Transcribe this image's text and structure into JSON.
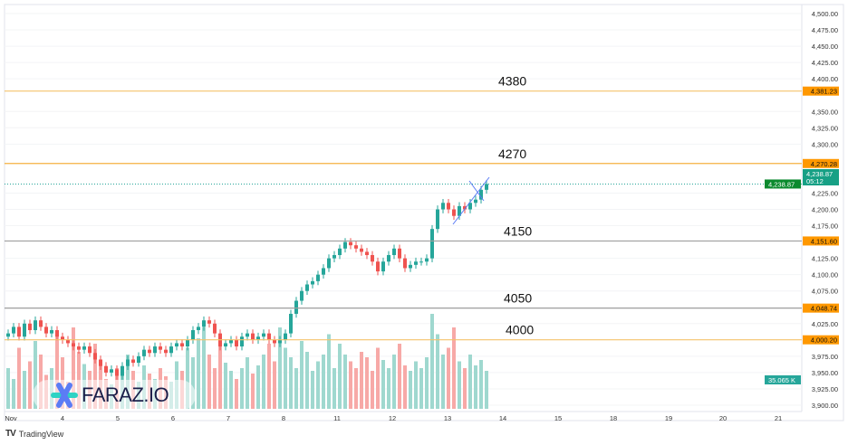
{
  "chart_data": {
    "type": "candlestick",
    "y_axis": {
      "min": 3900,
      "max": 4500,
      "ticks": [
        "4,500.00",
        "4,475.00",
        "4,450.00",
        "4,425.00",
        "4,400.00",
        "4,350.00",
        "4,325.00",
        "4,300.00",
        "4,225.00",
        "4,200.00",
        "4,175.00",
        "4,125.00",
        "4,100.00",
        "4,075.00",
        "4,025.00",
        "3,975.00",
        "3,950.00",
        "3,925.00",
        "3,900.00"
      ],
      "tick_values": [
        4500,
        4475,
        4450,
        4425,
        4400,
        4350,
        4325,
        4300,
        4225,
        4200,
        4175,
        4125,
        4100,
        4075,
        4025,
        3975,
        3950,
        3925,
        3900
      ]
    },
    "x_axis": {
      "labels": [
        "Nov",
        "4",
        "5",
        "6",
        "7",
        "8",
        "11",
        "12",
        "13",
        "14",
        "15",
        "18",
        "19",
        "20",
        "21"
      ]
    },
    "closes": [
      4010,
      4020,
      4005,
      4025,
      4015,
      4030,
      4020,
      4010,
      4015,
      4005,
      4000,
      3995,
      3990,
      3985,
      3990,
      3980,
      3970,
      3960,
      3950,
      3955,
      3945,
      3960,
      3970,
      3965,
      3975,
      3985,
      3980,
      3990,
      3985,
      3980,
      3990,
      3995,
      3990,
      4000,
      4015,
      4020,
      4030,
      4025,
      4010,
      3990,
      3995,
      4000,
      3990,
      4005,
      4010,
      4000,
      4005,
      4010,
      4000,
      3995,
      4000,
      4010,
      4040,
      4060,
      4075,
      4085,
      4090,
      4100,
      4110,
      4125,
      4130,
      4140,
      4150,
      4145,
      4140,
      4135,
      4130,
      4120,
      4105,
      4120,
      4130,
      4140,
      4125,
      4110,
      4115,
      4120,
      4120,
      4125,
      4170,
      4200,
      4210,
      4200,
      4190,
      4205,
      4200,
      4210,
      4215,
      4230,
      4238.87
    ],
    "volumes": [
      30,
      22,
      45,
      28,
      35,
      50,
      40,
      25,
      30,
      55,
      38,
      20,
      60,
      42,
      33,
      28,
      48,
      35,
      22,
      18,
      30,
      25,
      40,
      28,
      20,
      32,
      26,
      22,
      30,
      24,
      20,
      35,
      28,
      45,
      38,
      52,
      60,
      40,
      30,
      55,
      34,
      28,
      22,
      30,
      38,
      26,
      32,
      40,
      48,
      35,
      60,
      45,
      38,
      30,
      50,
      42,
      28,
      35,
      40,
      55,
      30,
      48,
      40,
      35,
      30,
      42,
      38,
      28,
      45,
      36,
      30,
      40,
      48,
      32,
      28,
      35,
      30,
      38,
      70,
      55,
      40,
      45,
      60,
      35,
      30,
      40,
      32,
      36,
      28
    ],
    "volume_label": "35.065 K",
    "levels": [
      {
        "label": "4380",
        "price": 4381.23,
        "tag": "4,381.23",
        "color": "#f5c26b"
      },
      {
        "label": "4270",
        "price": 4270.28,
        "tag": "4,270.28",
        "color": "#f5b041"
      },
      {
        "label": "4150",
        "price": 4151.6,
        "tag": "4,151.60",
        "color": "#9e9e9e"
      },
      {
        "label": "4050",
        "price": 4048.74,
        "tag": "4,048.74",
        "color": "#9e9e9e"
      },
      {
        "label": "4000",
        "price": 4000.2,
        "tag": "4,000.20",
        "color": "#f5c26b"
      }
    ],
    "last_price": {
      "value": 4238.87,
      "tag": "4,238.87",
      "countdown": "05:12",
      "bid_tag": "4,238.87"
    },
    "colors": {
      "up": "#26a69a",
      "down": "#ef5350",
      "tag": "#ff9800"
    }
  },
  "branding": {
    "watermark": "FARAZ.IO",
    "footer": "TradingView"
  }
}
